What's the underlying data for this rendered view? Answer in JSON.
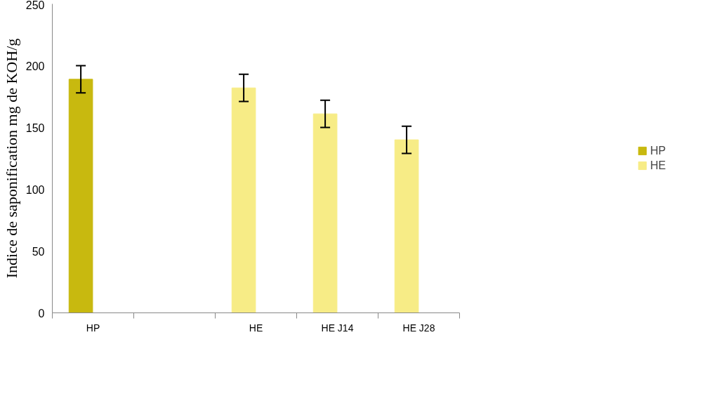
{
  "chart_data": {
    "type": "bar",
    "ylabel": "Indice de saponification mg de KOH/g",
    "categories": [
      "HP",
      null,
      "HE",
      "HE J14",
      "HE J28"
    ],
    "series": [
      {
        "name": "HP",
        "color": "#c8b90f",
        "values": [
          189,
          null,
          null,
          null,
          null
        ],
        "errors": [
          11,
          null,
          null,
          null,
          null
        ]
      },
      {
        "name": "HE",
        "color": "#f7ec86",
        "values": [
          null,
          null,
          182,
          161,
          140
        ],
        "errors": [
          null,
          null,
          11,
          11,
          11
        ]
      }
    ],
    "ylim": [
      0,
      250
    ],
    "yticks": [
      0,
      50,
      100,
      150,
      200,
      250
    ],
    "grid": false,
    "legend": "right"
  }
}
